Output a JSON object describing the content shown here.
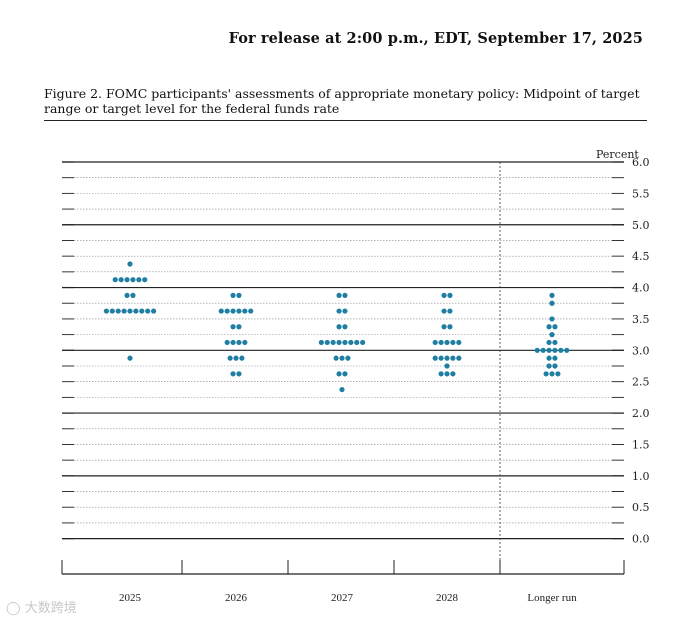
{
  "header": {
    "release_text": "For release at 2:00 p.m., EDT, September 17, 2025",
    "figure_title": "Figure 2. FOMC participants' assessments of appropriate monetary policy: Midpoint of target range or target level for the federal funds rate"
  },
  "watermark": {
    "text": "大数跨境",
    "icon": "chat-bubble-icon"
  },
  "chart_data": {
    "type": "scatter",
    "subtype": "dot-plot",
    "title": "",
    "xlabel": "",
    "ylabel": "Percent",
    "ylim": [
      0,
      6
    ],
    "grid": true,
    "dot_color": "#1f7fa3",
    "categories": [
      "2025",
      "2026",
      "2027",
      "2028",
      "Longer run"
    ],
    "y_ticks": [
      "0.0",
      "0.5",
      "1.0",
      "1.5",
      "2.0",
      "2.5",
      "3.0",
      "3.5",
      "4.0",
      "4.5",
      "5.0",
      "5.5",
      "6.0"
    ],
    "series": [
      {
        "category": "2025",
        "points": [
          {
            "y": 4.375,
            "count": 1
          },
          {
            "y": 4.125,
            "count": 6
          },
          {
            "y": 3.875,
            "count": 2
          },
          {
            "y": 3.625,
            "count": 9
          },
          {
            "y": 2.875,
            "count": 1
          }
        ]
      },
      {
        "category": "2026",
        "points": [
          {
            "y": 3.875,
            "count": 2
          },
          {
            "y": 3.625,
            "count": 6
          },
          {
            "y": 3.375,
            "count": 2
          },
          {
            "y": 3.125,
            "count": 4
          },
          {
            "y": 2.875,
            "count": 3
          },
          {
            "y": 2.625,
            "count": 2
          }
        ]
      },
      {
        "category": "2027",
        "points": [
          {
            "y": 3.875,
            "count": 2
          },
          {
            "y": 3.625,
            "count": 2
          },
          {
            "y": 3.375,
            "count": 2
          },
          {
            "y": 3.125,
            "count": 8
          },
          {
            "y": 2.875,
            "count": 3
          },
          {
            "y": 2.625,
            "count": 2
          },
          {
            "y": 2.375,
            "count": 1
          }
        ]
      },
      {
        "category": "2028",
        "points": [
          {
            "y": 3.875,
            "count": 2
          },
          {
            "y": 3.625,
            "count": 2
          },
          {
            "y": 3.375,
            "count": 2
          },
          {
            "y": 3.125,
            "count": 5
          },
          {
            "y": 2.875,
            "count": 5
          },
          {
            "y": 2.75,
            "count": 1
          },
          {
            "y": 2.625,
            "count": 3
          }
        ]
      },
      {
        "category": "Longer run",
        "points": [
          {
            "y": 3.875,
            "count": 1
          },
          {
            "y": 3.75,
            "count": 1
          },
          {
            "y": 3.5,
            "count": 1
          },
          {
            "y": 3.375,
            "count": 2
          },
          {
            "y": 3.25,
            "count": 1
          },
          {
            "y": 3.125,
            "count": 2
          },
          {
            "y": 3.0,
            "count": 6
          },
          {
            "y": 2.875,
            "count": 2
          },
          {
            "y": 2.75,
            "count": 2
          },
          {
            "y": 2.625,
            "count": 3
          }
        ]
      }
    ]
  }
}
